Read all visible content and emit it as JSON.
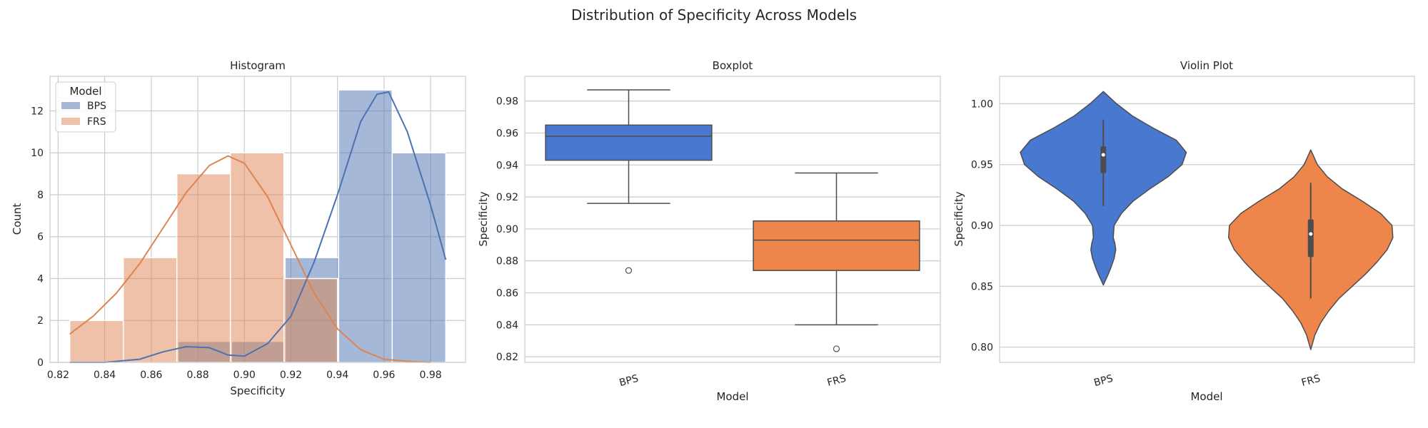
{
  "title": "Distribution of Specificity Across Models",
  "colors": {
    "BPS": "#4c72b0",
    "FRS": "#dd8452",
    "box_BPS": "#4878d0",
    "box_FRS": "#ee854a",
    "grid": "#cccccc",
    "edge": "#4d4d4d"
  },
  "chart_data": [
    {
      "type": "histogram",
      "title": "Histogram",
      "xlabel": "Specificity",
      "ylabel": "Count",
      "xlim": [
        0.8165,
        0.995
      ],
      "ylim": [
        0,
        13.65
      ],
      "xticks": [
        "0.82",
        "0.84",
        "0.86",
        "0.88",
        "0.90",
        "0.92",
        "0.94",
        "0.96",
        "0.98"
      ],
      "yticks": [
        "0",
        "2",
        "4",
        "6",
        "8",
        "10",
        "12"
      ],
      "legend": {
        "title": "Model",
        "placement": "upper-left",
        "entries": [
          "BPS",
          "FRS"
        ]
      },
      "kde": true,
      "series": [
        {
          "name": "BPS",
          "bins": [
            {
              "x0": 0.8715,
              "x1": 0.8945,
              "count": 1
            },
            {
              "x0": 0.8945,
              "x1": 0.9175,
              "count": 1
            },
            {
              "x0": 0.9175,
              "x1": 0.9405,
              "count": 5
            },
            {
              "x0": 0.9405,
              "x1": 0.9635,
              "count": 13
            },
            {
              "x0": 0.9635,
              "x1": 0.9865,
              "count": 10
            }
          ],
          "kde_x": [
            0.825,
            0.84,
            0.855,
            0.865,
            0.875,
            0.885,
            0.893,
            0.9,
            0.91,
            0.92,
            0.93,
            0.94,
            0.95,
            0.957,
            0.962,
            0.97,
            0.98,
            0.9865
          ],
          "kde_y": [
            0.0,
            0.0,
            0.15,
            0.5,
            0.75,
            0.7,
            0.35,
            0.3,
            0.9,
            2.2,
            4.8,
            8.0,
            11.5,
            12.8,
            12.9,
            11.0,
            7.5,
            4.9
          ]
        },
        {
          "name": "FRS",
          "bins": [
            {
              "x0": 0.825,
              "x1": 0.848,
              "count": 2
            },
            {
              "x0": 0.848,
              "x1": 0.871,
              "count": 5
            },
            {
              "x0": 0.871,
              "x1": 0.894,
              "count": 9
            },
            {
              "x0": 0.894,
              "x1": 0.917,
              "count": 10
            },
            {
              "x0": 0.917,
              "x1": 0.94,
              "count": 4
            }
          ],
          "kde_x": [
            0.825,
            0.835,
            0.845,
            0.855,
            0.865,
            0.875,
            0.885,
            0.893,
            0.9,
            0.91,
            0.92,
            0.93,
            0.94,
            0.95,
            0.96,
            0.97,
            0.98
          ],
          "kde_y": [
            1.35,
            2.2,
            3.3,
            4.7,
            6.4,
            8.1,
            9.4,
            9.85,
            9.5,
            7.9,
            5.6,
            3.3,
            1.6,
            0.6,
            0.15,
            0.05,
            0.0
          ]
        }
      ]
    },
    {
      "type": "box",
      "title": "Boxplot",
      "xlabel": "Model",
      "ylabel": "Specificity",
      "categories": [
        "BPS",
        "FRS"
      ],
      "ylim": [
        0.8165,
        0.9955
      ],
      "yticks": [
        "0.82",
        "0.84",
        "0.86",
        "0.88",
        "0.90",
        "0.92",
        "0.94",
        "0.96",
        "0.98"
      ],
      "boxes": [
        {
          "name": "BPS",
          "whislo": 0.916,
          "q1": 0.943,
          "med": 0.958,
          "q3": 0.965,
          "whishi": 0.987,
          "fliers": [
            0.874
          ]
        },
        {
          "name": "FRS",
          "whislo": 0.84,
          "q1": 0.874,
          "med": 0.893,
          "q3": 0.905,
          "whishi": 0.935,
          "fliers": [
            0.825
          ]
        }
      ]
    },
    {
      "type": "violin",
      "title": "Violin Plot",
      "xlabel": "Model",
      "ylabel": "Specificity",
      "categories": [
        "BPS",
        "FRS"
      ],
      "ylim": [
        0.7875,
        1.0225
      ],
      "yticks": [
        "0.80",
        "0.85",
        "0.90",
        "0.95",
        "1.00"
      ],
      "violins": [
        {
          "name": "BPS",
          "y": [
            0.851,
            0.86,
            0.865,
            0.873,
            0.88,
            0.885,
            0.89,
            0.9,
            0.91,
            0.92,
            0.93,
            0.94,
            0.95,
            0.96,
            0.97,
            0.98,
            0.99,
            1.0,
            1.01
          ],
          "halfwidth": [
            0.0,
            0.06,
            0.09,
            0.13,
            0.15,
            0.14,
            0.12,
            0.13,
            0.22,
            0.36,
            0.56,
            0.78,
            0.95,
            1.0,
            0.88,
            0.6,
            0.35,
            0.16,
            0.0
          ],
          "q1": 0.943,
          "med": 0.958,
          "q3": 0.965,
          "whislo": 0.916,
          "whishi": 0.987
        },
        {
          "name": "FRS",
          "y": [
            0.798,
            0.81,
            0.82,
            0.83,
            0.84,
            0.85,
            0.86,
            0.87,
            0.88,
            0.89,
            0.9,
            0.91,
            0.92,
            0.93,
            0.94,
            0.95,
            0.962
          ],
          "halfwidth": [
            0.0,
            0.05,
            0.12,
            0.22,
            0.34,
            0.5,
            0.66,
            0.8,
            0.92,
            0.99,
            0.98,
            0.84,
            0.62,
            0.38,
            0.2,
            0.08,
            0.0
          ],
          "q1": 0.874,
          "med": 0.893,
          "q3": 0.905,
          "whislo": 0.84,
          "whishi": 0.935
        }
      ]
    }
  ]
}
